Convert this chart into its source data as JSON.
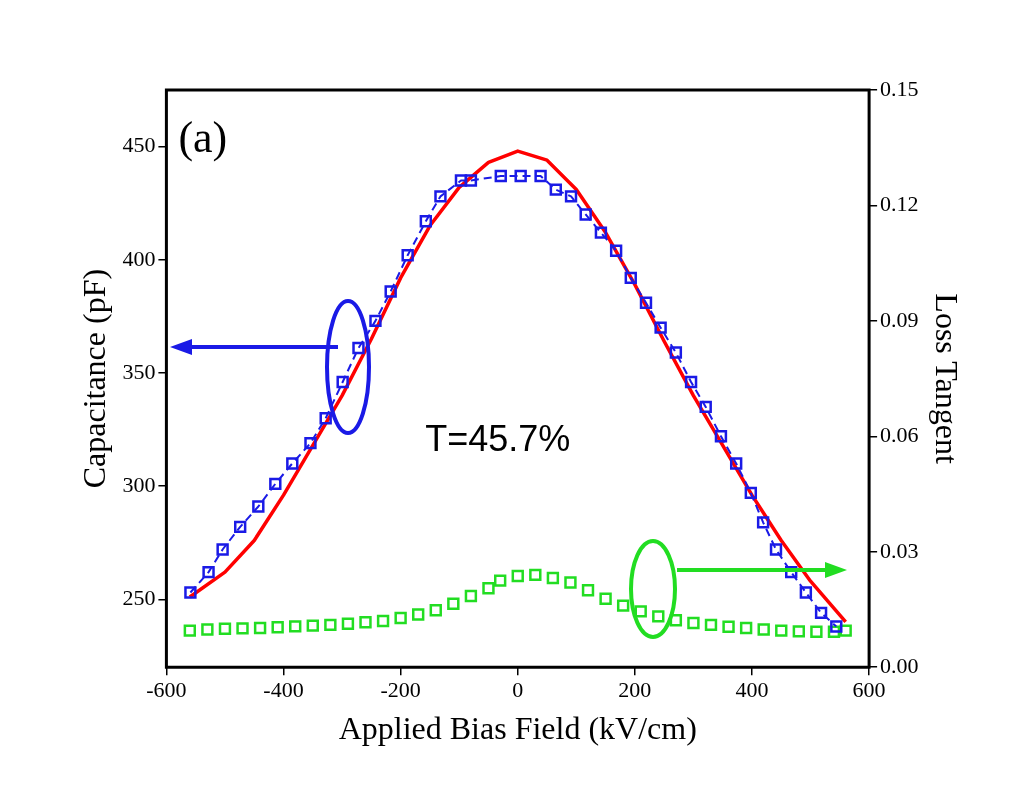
{
  "chart_data": {
    "type": "line",
    "xlabel": "Applied Bias Field (kV/cm)",
    "ylabel": "Capacitance (pF)",
    "y2label": "Loss Tangent",
    "annotations": [
      "(a)",
      "T=45.7%"
    ],
    "xlim": [
      -600,
      600
    ],
    "xticks": [
      -600,
      -400,
      -200,
      0,
      200,
      400,
      600
    ],
    "ylim": [
      220,
      475
    ],
    "yticks": [
      250,
      300,
      350,
      400,
      450
    ],
    "y2lim": [
      0,
      0.15
    ],
    "y2ticks": [
      {
        "value": 0,
        "label": "0.00"
      },
      {
        "value": 0.03,
        "label": "0.03"
      },
      {
        "value": 0.06,
        "label": "0.06"
      },
      {
        "value": 0.09,
        "label": "0.09"
      },
      {
        "value": 0.12,
        "label": "0.12"
      },
      {
        "value": 0.15,
        "label": "0.15"
      }
    ],
    "grid": false,
    "legend": false,
    "series": [
      {
        "color": "#1a1ae6",
        "marker": "square",
        "line_style": "dashed",
        "x": [
          -559,
          -528,
          -504,
          -474,
          -443,
          -414,
          -385,
          -354,
          -328,
          -299,
          -272,
          -243,
          -217,
          -188,
          -157,
          -132,
          -97,
          -80,
          -29,
          5,
          39,
          65,
          91,
          116,
          142,
          168,
          193,
          219,
          244,
          270,
          296,
          321,
          347,
          373,
          398,
          419,
          441,
          467,
          492,
          518,
          544
        ],
        "values": [
          253,
          262,
          272,
          282,
          291,
          301,
          310,
          319,
          330,
          346,
          361,
          373,
          386,
          402,
          417,
          428,
          435,
          435,
          437,
          437,
          437,
          431,
          428,
          420,
          412,
          404,
          392,
          381,
          370,
          359,
          346,
          335,
          322,
          310,
          297,
          284,
          272,
          262,
          253,
          244,
          238
        ]
      },
      {
        "type": "line",
        "color": "#ff0000",
        "marker": "none",
        "line_style": "solid",
        "x": [
          -560,
          -500,
          -450,
          -400,
          -350,
          -300,
          -250,
          -200,
          -150,
          -100,
          -50,
          0,
          50,
          100,
          150,
          200,
          250,
          300,
          350,
          400,
          450,
          500,
          560
        ],
        "values": [
          251,
          262,
          276,
          296,
          318,
          340,
          365,
          392,
          415,
          432,
          443,
          448,
          444,
          431,
          412,
          389,
          364,
          340,
          318,
          296,
          276,
          258,
          240
        ]
      },
      {
        "type": "scatter",
        "color": "#22dd22",
        "marker": "square",
        "axis": "y2",
        "x": [
          -560,
          -530,
          -500,
          -470,
          -440,
          -410,
          -380,
          -350,
          -320,
          -290,
          -260,
          -230,
          -200,
          -170,
          -140,
          -110,
          -80,
          -50,
          -30,
          0,
          30,
          60,
          90,
          120,
          150,
          180,
          210,
          240,
          270,
          300,
          330,
          360,
          390,
          420,
          450,
          480,
          510,
          540,
          560
        ],
        "values": [
          0.0095,
          0.0098,
          0.01,
          0.0101,
          0.0102,
          0.0104,
          0.0106,
          0.0108,
          0.011,
          0.0113,
          0.0117,
          0.012,
          0.0128,
          0.0137,
          0.0148,
          0.0165,
          0.0185,
          0.0205,
          0.0225,
          0.0237,
          0.024,
          0.0232,
          0.022,
          0.02,
          0.0178,
          0.016,
          0.0145,
          0.0132,
          0.0122,
          0.0115,
          0.011,
          0.0105,
          0.0102,
          0.0098,
          0.0095,
          0.0093,
          0.0092,
          0.0092,
          0.0095
        ]
      }
    ]
  }
}
